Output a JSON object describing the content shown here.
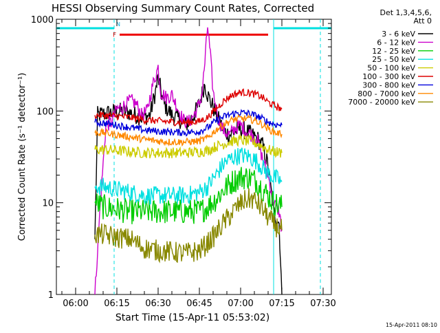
{
  "chart_data": {
    "type": "line",
    "title": "HESSI Observing Summary Count Rates, Corrected",
    "xlabel": "Start Time (15-Apr-11 05:53:02)",
    "ylabel": "Corrected Count Rate (s⁻¹ detector⁻¹)",
    "y_scale": "log",
    "ylim": [
      1,
      1000
    ],
    "y_ticks": [
      {
        "value": 1,
        "label": "1"
      },
      {
        "value": 10,
        "label": "10"
      },
      {
        "value": 100,
        "label": "100"
      },
      {
        "value": 1000,
        "label": "1000"
      }
    ],
    "xlim": [
      "05:53",
      "07:33"
    ],
    "x_ticks": [
      "06:00",
      "06:15",
      "06:30",
      "06:45",
      "07:00",
      "07:15",
      "07:30"
    ],
    "legend_title": [
      "Det 1,3,4,5,6,",
      "Att 0"
    ],
    "legend_position": "outside right",
    "footer_timestamp": "15-Apr-2011 08:10",
    "orbit_markers": {
      "night_periods": [
        [
          "05:53",
          "06:14"
        ],
        [
          "07:12",
          "07:33"
        ]
      ],
      "night_label": "N",
      "night_boundaries": [
        "06:14",
        "07:12",
        "07:29"
      ],
      "flare_flag": {
        "label": "F",
        "start": "06:16",
        "end": "07:10",
        "y": 680
      }
    },
    "data_start": "06:07",
    "data_end": "07:15",
    "series": [
      {
        "name": "3 - 6 keV",
        "color": "#000000",
        "points": [
          [
            "06:07",
            4
          ],
          [
            "06:08",
            90
          ],
          [
            "06:12",
            95
          ],
          [
            "06:15",
            98
          ],
          [
            "06:18",
            100
          ],
          [
            "06:20",
            95
          ],
          [
            "06:24",
            85
          ],
          [
            "06:27",
            90
          ],
          [
            "06:29",
            160
          ],
          [
            "06:30",
            230
          ],
          [
            "06:32",
            120
          ],
          [
            "06:35",
            90
          ],
          [
            "06:38",
            80
          ],
          [
            "06:40",
            70
          ],
          [
            "06:43",
            90
          ],
          [
            "06:45",
            120
          ],
          [
            "06:47",
            200
          ],
          [
            "06:48",
            150
          ],
          [
            "06:50",
            110
          ],
          [
            "06:52",
            80
          ],
          [
            "06:54",
            60
          ],
          [
            "06:56",
            55
          ],
          [
            "06:58",
            60
          ],
          [
            "07:00",
            65
          ],
          [
            "07:02",
            60
          ],
          [
            "07:04",
            55
          ],
          [
            "07:06",
            50
          ],
          [
            "07:08",
            42
          ],
          [
            "07:10",
            25
          ],
          [
            "07:12",
            8
          ],
          [
            "07:14",
            6
          ],
          [
            "07:15",
            1
          ]
        ]
      },
      {
        "name": "6 - 12 keV",
        "color": "#cc00cc",
        "points": [
          [
            "06:07",
            1
          ],
          [
            "06:09",
            10
          ],
          [
            "06:11",
            70
          ],
          [
            "06:13",
            75
          ],
          [
            "06:15",
            105
          ],
          [
            "06:17",
            110
          ],
          [
            "06:20",
            130
          ],
          [
            "06:22",
            120
          ],
          [
            "06:24",
            90
          ],
          [
            "06:26",
            100
          ],
          [
            "06:28",
            190
          ],
          [
            "06:30",
            300
          ],
          [
            "06:31",
            160
          ],
          [
            "06:33",
            140
          ],
          [
            "06:35",
            150
          ],
          [
            "06:37",
            110
          ],
          [
            "06:39",
            80
          ],
          [
            "06:41",
            75
          ],
          [
            "06:43",
            90
          ],
          [
            "06:45",
            120
          ],
          [
            "06:46",
            160
          ],
          [
            "06:47",
            340
          ],
          [
            "06:48",
            850
          ],
          [
            "06:49",
            400
          ],
          [
            "06:50",
            160
          ],
          [
            "06:52",
            80
          ],
          [
            "06:54",
            60
          ],
          [
            "06:56",
            55
          ],
          [
            "06:58",
            65
          ],
          [
            "07:00",
            70
          ],
          [
            "07:02",
            60
          ],
          [
            "07:04",
            55
          ],
          [
            "07:06",
            50
          ],
          [
            "07:08",
            30
          ],
          [
            "07:10",
            20
          ],
          [
            "07:12",
            10
          ],
          [
            "07:14",
            8
          ],
          [
            "07:15",
            5
          ]
        ]
      },
      {
        "name": "12 - 25 keV",
        "color": "#00cc00",
        "points": [
          [
            "06:07",
            10
          ],
          [
            "06:10",
            9
          ],
          [
            "06:15",
            8.5
          ],
          [
            "06:20",
            8
          ],
          [
            "06:25",
            8
          ],
          [
            "06:30",
            8
          ],
          [
            "06:35",
            8
          ],
          [
            "06:40",
            8
          ],
          [
            "06:45",
            8
          ],
          [
            "06:48",
            9
          ],
          [
            "06:51",
            11
          ],
          [
            "06:54",
            14
          ],
          [
            "06:57",
            17
          ],
          [
            "07:00",
            19
          ],
          [
            "07:03",
            19
          ],
          [
            "07:06",
            17
          ],
          [
            "07:08",
            14
          ],
          [
            "07:10",
            12
          ],
          [
            "07:12",
            10
          ],
          [
            "07:15",
            9
          ]
        ]
      },
      {
        "name": "25 - 50 keV",
        "color": "#00e0e0",
        "points": [
          [
            "06:07",
            15
          ],
          [
            "06:10",
            15
          ],
          [
            "06:15",
            14
          ],
          [
            "06:20",
            13
          ],
          [
            "06:25",
            12
          ],
          [
            "06:30",
            12
          ],
          [
            "06:35",
            12
          ],
          [
            "06:40",
            12
          ],
          [
            "06:45",
            13
          ],
          [
            "06:48",
            15
          ],
          [
            "06:51",
            20
          ],
          [
            "06:54",
            27
          ],
          [
            "06:57",
            31
          ],
          [
            "07:00",
            33
          ],
          [
            "07:03",
            32
          ],
          [
            "07:06",
            28
          ],
          [
            "07:08",
            24
          ],
          [
            "07:10",
            21
          ],
          [
            "07:12",
            19
          ],
          [
            "07:15",
            17
          ]
        ]
      },
      {
        "name": "50 - 100 keV",
        "color": "#cccc00",
        "points": [
          [
            "06:07",
            38
          ],
          [
            "06:10",
            38
          ],
          [
            "06:15",
            37
          ],
          [
            "06:20",
            36
          ],
          [
            "06:25",
            35
          ],
          [
            "06:30",
            35
          ],
          [
            "06:35",
            35
          ],
          [
            "06:40",
            35
          ],
          [
            "06:45",
            36
          ],
          [
            "06:48",
            37
          ],
          [
            "06:51",
            41
          ],
          [
            "06:54",
            44
          ],
          [
            "06:57",
            47
          ],
          [
            "07:00",
            48
          ],
          [
            "07:03",
            47
          ],
          [
            "07:06",
            44
          ],
          [
            "07:08",
            41
          ],
          [
            "07:10",
            38
          ],
          [
            "07:12",
            36
          ],
          [
            "07:15",
            35
          ]
        ]
      },
      {
        "name": "100 - 300 keV",
        "color": "#dd0000",
        "points": [
          [
            "06:07",
            90
          ],
          [
            "06:10",
            90
          ],
          [
            "06:15",
            88
          ],
          [
            "06:20",
            85
          ],
          [
            "06:25",
            80
          ],
          [
            "06:30",
            78
          ],
          [
            "06:35",
            76
          ],
          [
            "06:40",
            75
          ],
          [
            "06:45",
            77
          ],
          [
            "06:48",
            85
          ],
          [
            "06:51",
            105
          ],
          [
            "06:54",
            130
          ],
          [
            "06:57",
            150
          ],
          [
            "07:00",
            160
          ],
          [
            "07:03",
            158
          ],
          [
            "07:06",
            150
          ],
          [
            "07:08",
            140
          ],
          [
            "07:10",
            125
          ],
          [
            "07:12",
            115
          ],
          [
            "07:15",
            105
          ]
        ]
      },
      {
        "name": "300 - 800 keV",
        "color": "#0000dd",
        "points": [
          [
            "06:07",
            75
          ],
          [
            "06:10",
            74
          ],
          [
            "06:15",
            70
          ],
          [
            "06:20",
            66
          ],
          [
            "06:25",
            62
          ],
          [
            "06:30",
            60
          ],
          [
            "06:35",
            59
          ],
          [
            "06:40",
            58
          ],
          [
            "06:45",
            60
          ],
          [
            "06:48",
            66
          ],
          [
            "06:51",
            78
          ],
          [
            "06:54",
            87
          ],
          [
            "06:57",
            93
          ],
          [
            "07:00",
            96
          ],
          [
            "07:03",
            94
          ],
          [
            "07:06",
            88
          ],
          [
            "07:08",
            82
          ],
          [
            "07:10",
            76
          ],
          [
            "07:12",
            72
          ],
          [
            "07:15",
            70
          ]
        ]
      },
      {
        "name": "800 - 7000 keV",
        "color": "#ff8800",
        "points": [
          [
            "06:07",
            58
          ],
          [
            "06:10",
            58
          ],
          [
            "06:15",
            55
          ],
          [
            "06:20",
            52
          ],
          [
            "06:25",
            49
          ],
          [
            "06:30",
            47
          ],
          [
            "06:35",
            46
          ],
          [
            "06:40",
            46
          ],
          [
            "06:45",
            47
          ],
          [
            "06:48",
            51
          ],
          [
            "06:51",
            62
          ],
          [
            "06:54",
            72
          ],
          [
            "06:57",
            80
          ],
          [
            "07:00",
            83
          ],
          [
            "07:03",
            82
          ],
          [
            "07:06",
            77
          ],
          [
            "07:08",
            71
          ],
          [
            "07:10",
            64
          ],
          [
            "07:12",
            59
          ],
          [
            "07:15",
            56
          ]
        ]
      },
      {
        "name": "7000 - 20000 keV",
        "color": "#888800",
        "points": [
          [
            "06:07",
            4.5
          ],
          [
            "06:10",
            4.5
          ],
          [
            "06:15",
            4.2
          ],
          [
            "06:20",
            4
          ],
          [
            "06:25",
            3.2
          ],
          [
            "06:30",
            3
          ],
          [
            "06:35",
            2.9
          ],
          [
            "06:40",
            2.8
          ],
          [
            "06:45",
            3
          ],
          [
            "06:47",
            3.4
          ],
          [
            "06:50",
            4.2
          ],
          [
            "06:53",
            5.6
          ],
          [
            "06:56",
            7.2
          ],
          [
            "06:59",
            9.2
          ],
          [
            "07:02",
            10.8
          ],
          [
            "07:04",
            11
          ],
          [
            "07:06",
            10
          ],
          [
            "07:08",
            8.5
          ],
          [
            "07:10",
            7
          ],
          [
            "07:12",
            5.8
          ],
          [
            "07:15",
            5
          ]
        ]
      }
    ]
  }
}
